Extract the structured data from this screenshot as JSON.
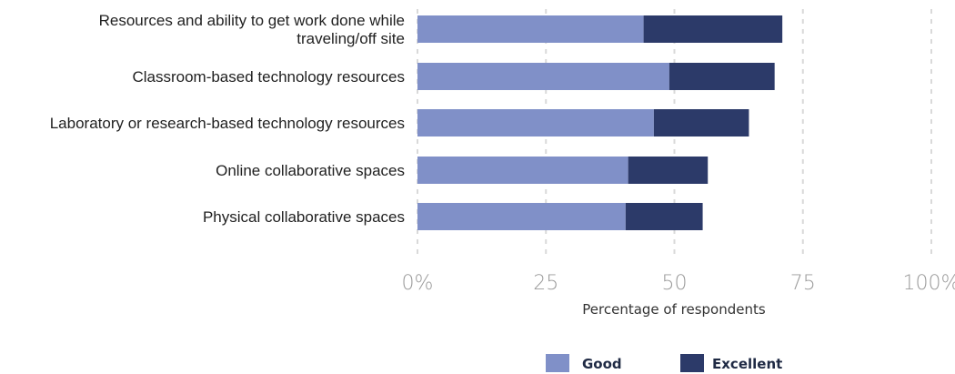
{
  "chart_data": {
    "type": "bar",
    "orientation": "horizontal",
    "stacked": true,
    "categories": [
      "Resources and ability to get work done while traveling/off site",
      "Classroom-based technology resources",
      "Laboratory or research-based technology resources",
      "Online collaborative spaces",
      "Physical collaborative spaces"
    ],
    "series": [
      {
        "name": "Good",
        "values": [
          44,
          49,
          46,
          41,
          40.5
        ]
      },
      {
        "name": "Excellent",
        "values": [
          27,
          20.5,
          18.5,
          15.5,
          15
        ]
      }
    ],
    "xlabel": "Percentage of respondents",
    "ylabel": "",
    "xlim": [
      0,
      100
    ],
    "x_ticks": [
      "0%",
      "25",
      "50",
      "75",
      "100%"
    ],
    "x_tick_values": [
      0,
      25,
      50,
      75,
      100
    ],
    "grid": true,
    "legend_position": "bottom",
    "colors": {
      "Good": "#8090c8",
      "Excellent": "#2c3a69",
      "grid": "#d9d9d9"
    }
  }
}
